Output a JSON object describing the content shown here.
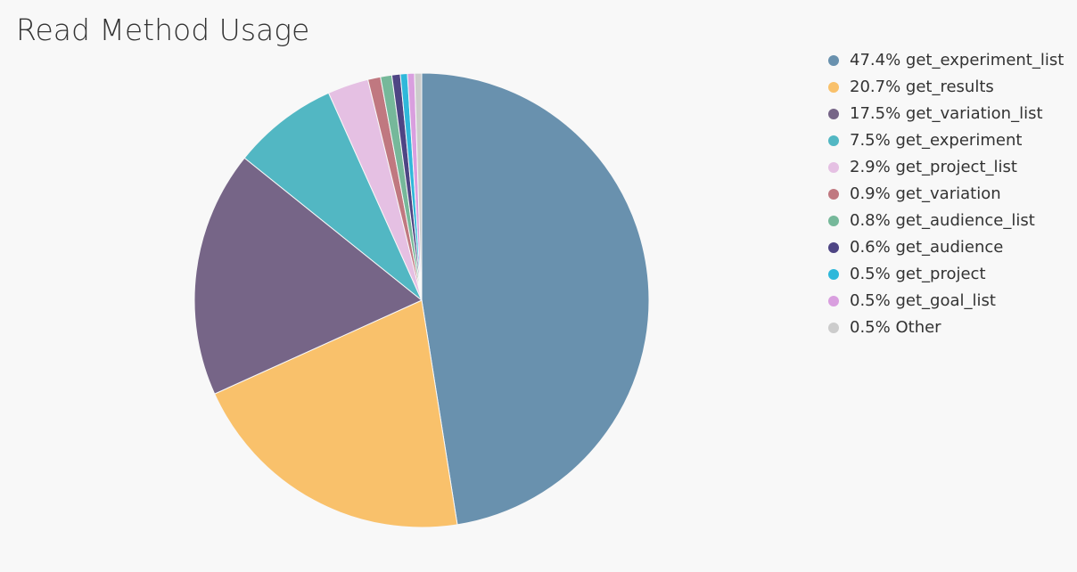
{
  "chart_data": {
    "type": "pie",
    "title": "Read Method Usage",
    "categories": [
      "get_experiment_list",
      "get_results",
      "get_variation_list",
      "get_experiment",
      "get_project_list",
      "get_variation",
      "get_audience_list",
      "get_audience",
      "get_project",
      "get_goal_list",
      "Other"
    ],
    "values": [
      47.4,
      20.7,
      17.5,
      7.5,
      2.9,
      0.9,
      0.8,
      0.6,
      0.5,
      0.5,
      0.5
    ],
    "value_labels": [
      "47.4%",
      "20.7%",
      "17.5%",
      "7.5%",
      "2.9%",
      "0.9%",
      "0.8%",
      "0.6%",
      "0.5%",
      "0.5%",
      "0.5%"
    ],
    "colors": [
      "#6991ae",
      "#f9c16b",
      "#766587",
      "#52b7c3",
      "#e5c0e3",
      "#c07880",
      "#76b89a",
      "#4e4584",
      "#2fb8da",
      "#d99fdf",
      "#cccccc"
    ],
    "legend": "right"
  }
}
